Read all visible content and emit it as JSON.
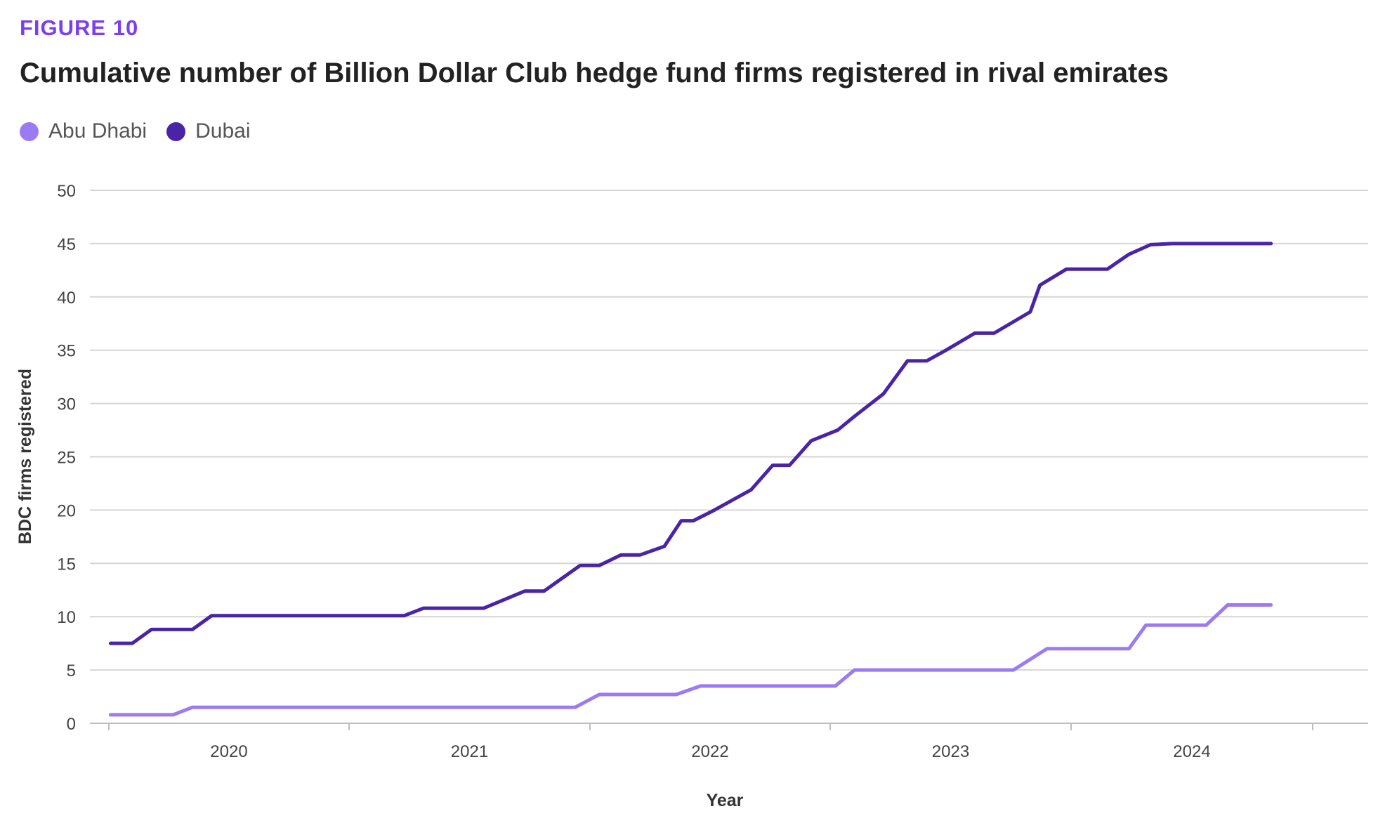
{
  "figure_label": "FIGURE 10",
  "chart_data": {
    "type": "line",
    "title": "Cumulative number of Billion Dollar Club hedge fund firms registered in rival emirates",
    "xlabel": "Year",
    "ylabel": "BDC firms registered",
    "x_ticks": [
      "2020",
      "2021",
      "2022",
      "2023",
      "2024"
    ],
    "x_range": [
      2019.4,
      2024.4
    ],
    "ylim": [
      0,
      50
    ],
    "y_ticks": [
      0,
      5,
      10,
      15,
      20,
      25,
      30,
      35,
      40,
      45,
      50
    ],
    "grid": true,
    "legend_position": "top-left",
    "series": [
      {
        "name": "Abu Dhabi",
        "color": "#9B7BF4",
        "x": [
          2019.41,
          2019.67,
          2019.75,
          2021.34,
          2021.44,
          2021.76,
          2021.86,
          2022.42,
          2022.5,
          2023.16,
          2023.3,
          2023.64,
          2023.71,
          2023.96,
          2024.05,
          2024.23
        ],
        "values": [
          0.8,
          0.8,
          1.5,
          1.5,
          2.7,
          2.7,
          3.5,
          3.5,
          5.0,
          5.0,
          7.0,
          7.0,
          9.2,
          9.2,
          11.1,
          11.1
        ]
      },
      {
        "name": "Dubai",
        "color": "#4A24A8",
        "x": [
          2019.41,
          2019.5,
          2019.58,
          2019.75,
          2019.83,
          2020.63,
          2020.71,
          2020.96,
          2021.13,
          2021.21,
          2021.36,
          2021.44,
          2021.53,
          2021.61,
          2021.71,
          2021.78,
          2021.83,
          2021.91,
          2021.99,
          2022.07,
          2022.16,
          2022.23,
          2022.32,
          2022.43,
          2022.5,
          2022.62,
          2022.72,
          2022.8,
          2022.88,
          2023.0,
          2023.08,
          2023.23,
          2023.27,
          2023.38,
          2023.46,
          2023.55,
          2023.64,
          2023.73,
          2023.82,
          2023.91,
          2024.01,
          2024.06,
          2024.13,
          2024.2,
          2024.23
        ],
        "values": [
          7.5,
          7.5,
          8.8,
          8.8,
          10.1,
          10.1,
          10.8,
          10.8,
          12.4,
          12.4,
          14.8,
          14.8,
          15.8,
          15.8,
          16.6,
          19.0,
          19.0,
          19.9,
          20.9,
          21.9,
          24.2,
          24.2,
          26.5,
          27.5,
          28.8,
          30.9,
          34.0,
          34.0,
          35.0,
          36.6,
          36.6,
          38.6,
          41.1,
          42.6,
          42.6,
          42.6,
          44.0,
          44.9,
          45.0,
          45.0,
          45.0,
          45.0,
          45.0,
          45.0,
          45.0
        ]
      }
    ]
  }
}
